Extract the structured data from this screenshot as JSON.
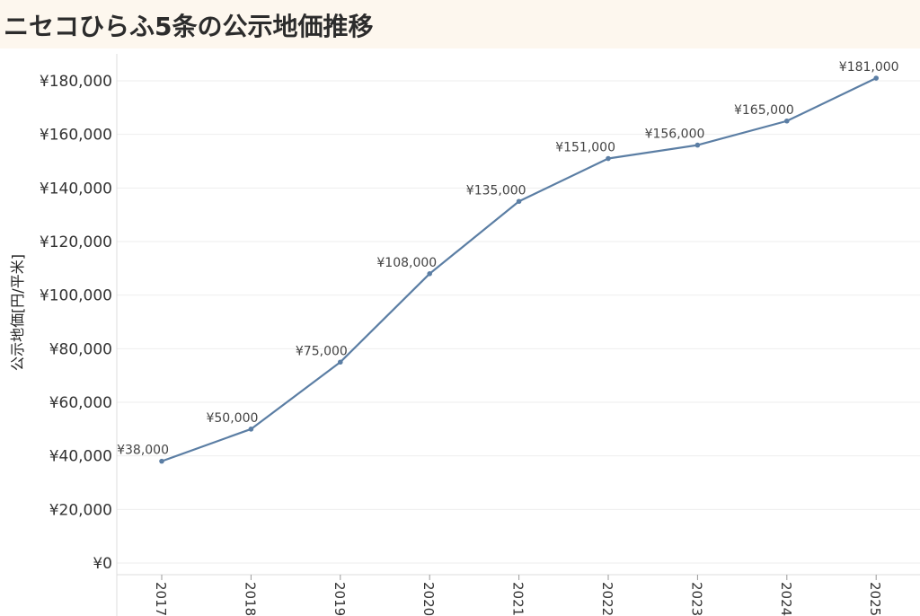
{
  "chart_data": {
    "type": "line",
    "title": "ニセコひらふ5条の公示地価推移",
    "ylabel": "公示地価[円/平米]",
    "xlabel": "",
    "x": [
      "2017",
      "2018",
      "2019",
      "2020",
      "2021",
      "2022",
      "2023",
      "2024",
      "2025"
    ],
    "series": [
      {
        "values": [
          38000,
          50000,
          75000,
          108000,
          135000,
          151000,
          156000,
          165000,
          181000
        ],
        "labels": [
          "¥38,000",
          "¥50,000",
          "¥75,000",
          "¥108,000",
          "¥135,000",
          "¥151,000",
          "¥156,000",
          "¥165,000",
          "¥181,000"
        ]
      }
    ],
    "ylim": [
      0,
      185000
    ],
    "yticks": [
      0,
      20000,
      40000,
      60000,
      80000,
      100000,
      120000,
      140000,
      160000,
      180000
    ],
    "ytick_labels": [
      "¥0",
      "¥20,000",
      "¥40,000",
      "¥60,000",
      "¥80,000",
      "¥100,000",
      "¥120,000",
      "¥140,000",
      "¥160,000",
      "¥180,000"
    ],
    "grid": true,
    "line_color": "#5b7ea4",
    "background_title": "#fdf7ee"
  }
}
